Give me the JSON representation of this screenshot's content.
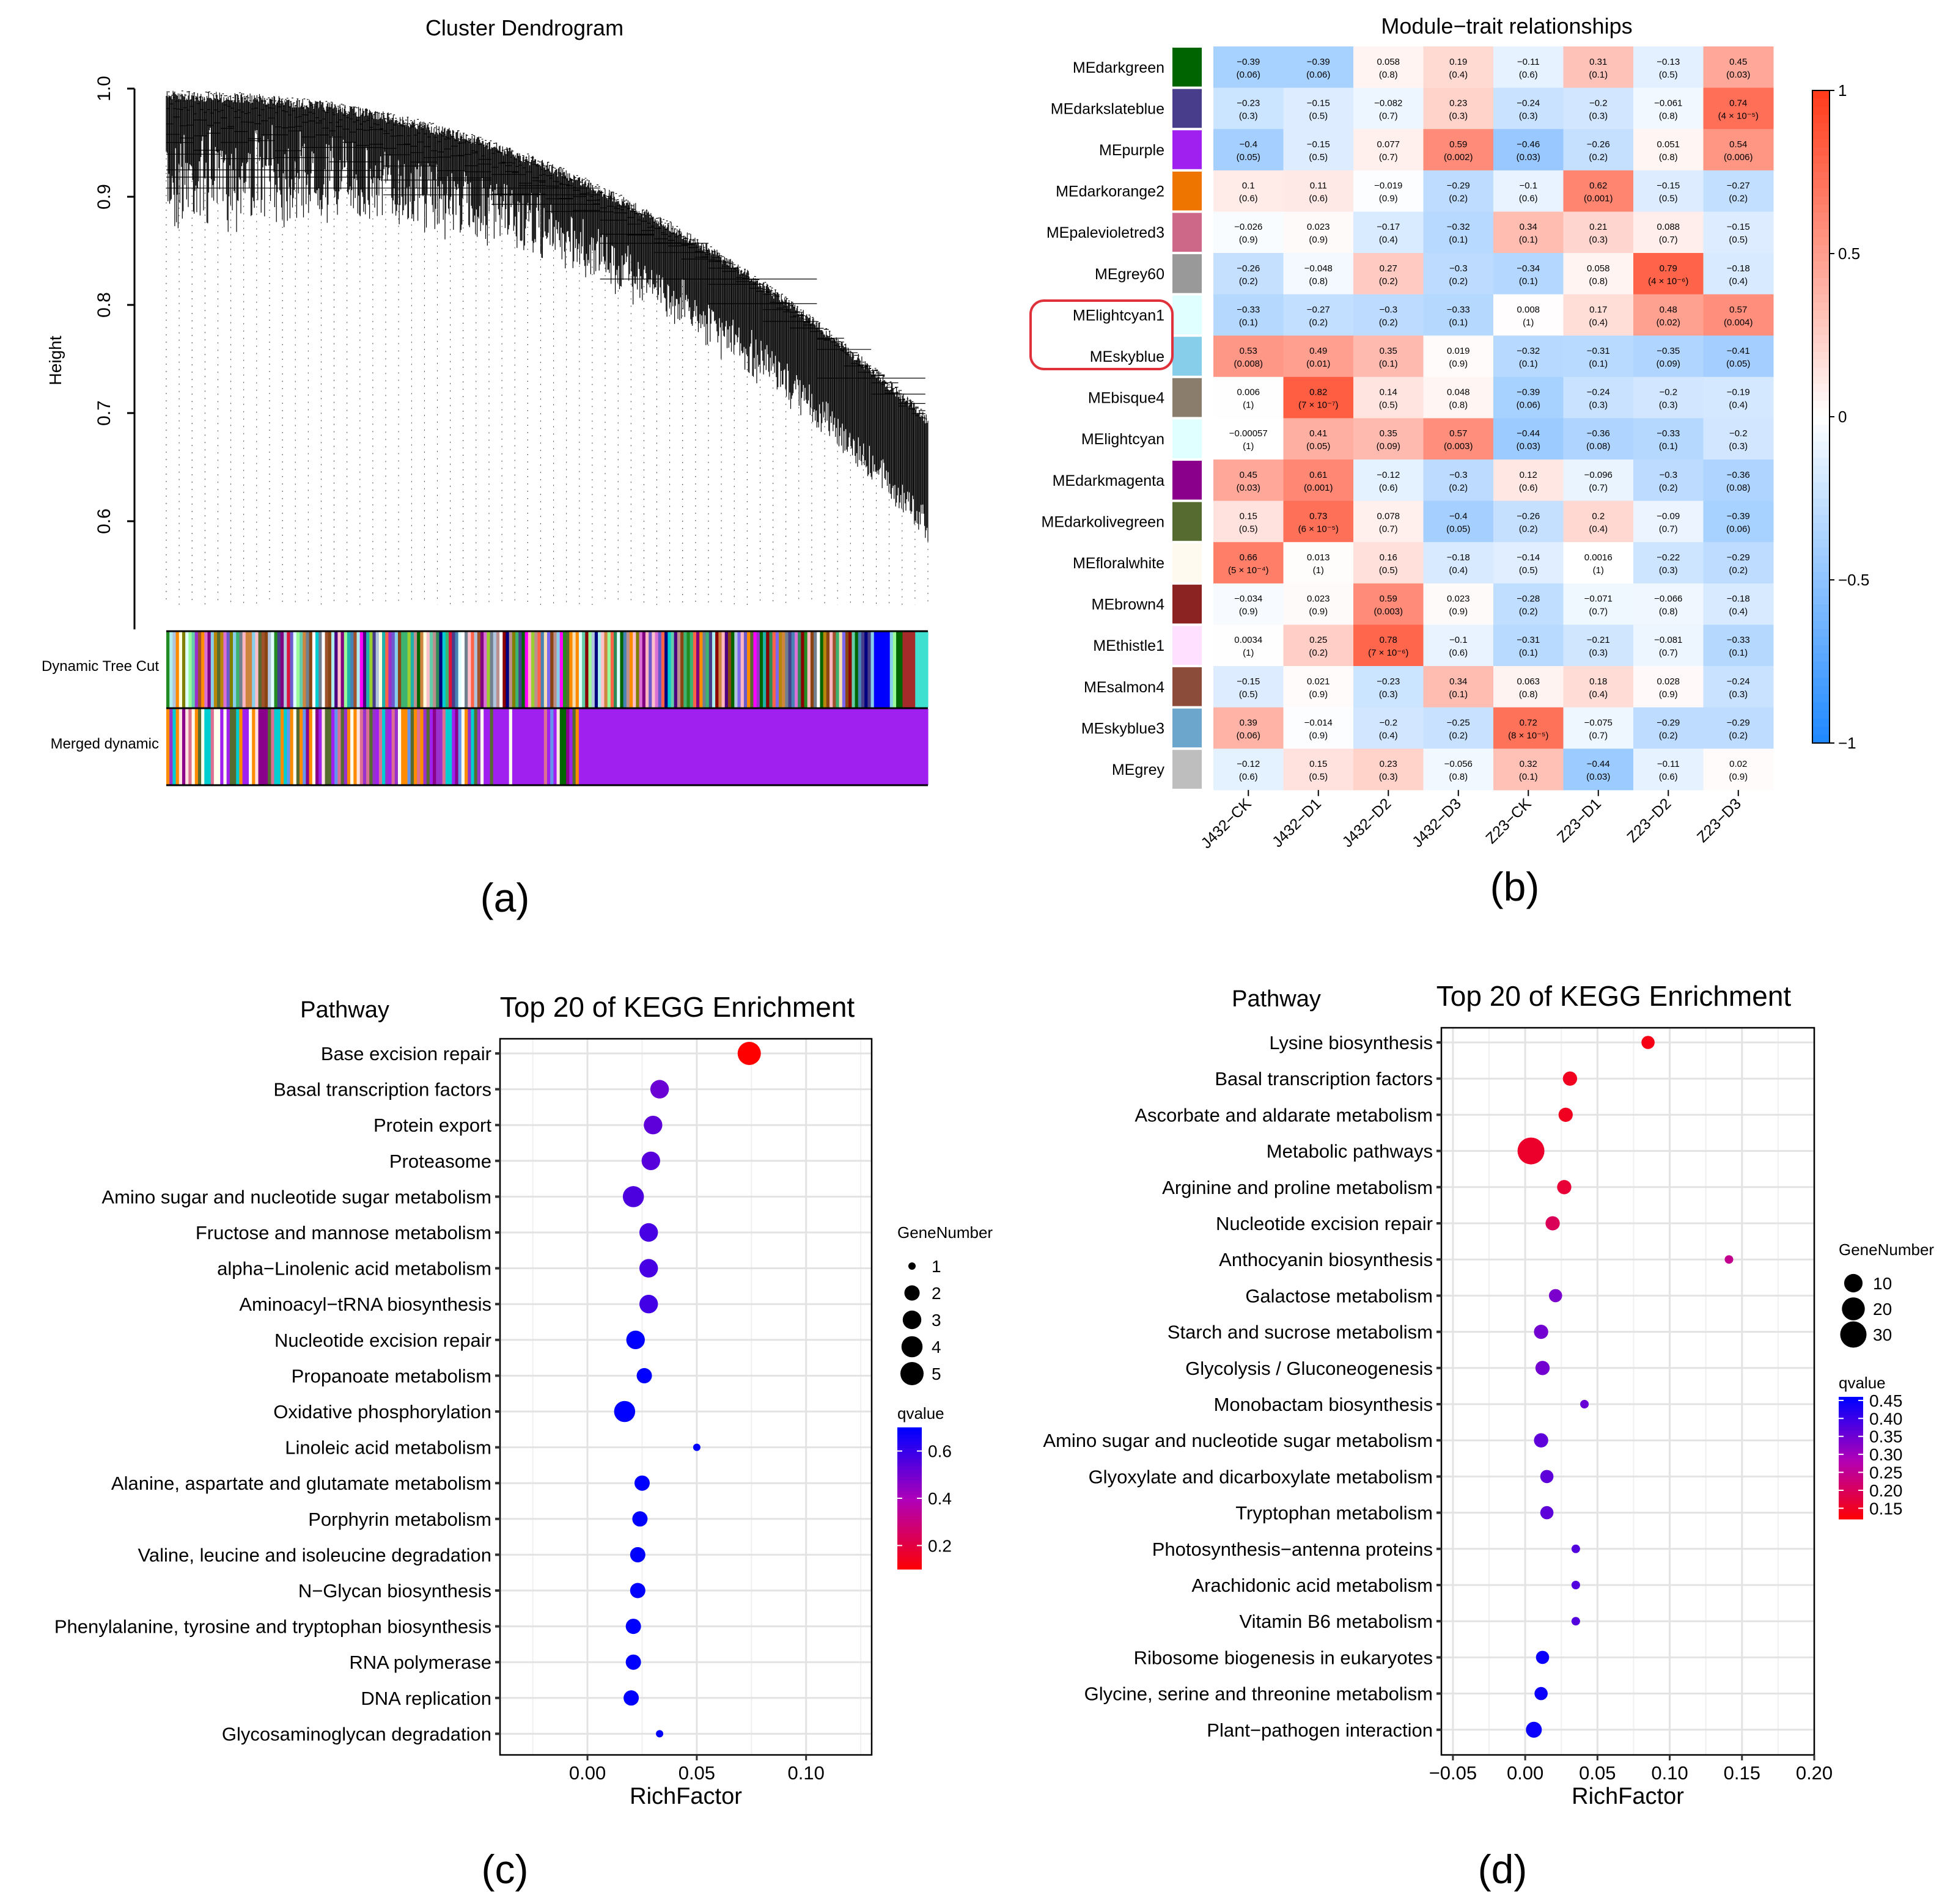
{
  "figure": {
    "panel_labels": [
      "(a)",
      "(b)",
      "(c)",
      "(d)"
    ],
    "colors": {
      "heat_neg": "#1E88FF",
      "heat_mid": "#FFFFFF",
      "heat_pos": "#FF3B1A",
      "outline": "#E0303A"
    }
  },
  "panel_a": {
    "title": "Cluster Dendrogram",
    "ylabel": "Height",
    "yticks": [
      "1.0",
      "0.9",
      "0.8",
      "0.7",
      "0.6"
    ],
    "ytick_values": [
      1.0,
      0.9,
      0.8,
      0.7,
      0.6
    ],
    "ylim": [
      0.5,
      1.0
    ],
    "row1_label": "Dynamic Tree Cut",
    "row2_label": "Merged dynamic",
    "dynamic_colors": [
      "#8B0000",
      "#20B2AA",
      "#9932CC",
      "#FFC0CB",
      "#3CB371",
      "#808000",
      "#FFB6C1",
      "#87CEEB",
      "#CD853F",
      "#483D8B",
      "#FFFFE0",
      "#FF00FF",
      "#000080",
      "#228B22",
      "#A0522D",
      "#E0FFFF",
      "#FF8C00",
      "#7B68EE",
      "#B0C4DE",
      "#2E8B57",
      "#FFFFFF",
      "#556B2F",
      "#DA70D6",
      "#006400",
      "#4682B4",
      "#BC8F8F",
      "#9ACD32",
      "#FF6347",
      "#00CED1",
      "#800080",
      "#F5DEB3",
      "#708090",
      "#DC143C",
      "#66CDAA",
      "#B8860B",
      "#6A5ACD",
      "#AFEEEE",
      "#8B4513",
      "#98FB98",
      "#4B0082"
    ],
    "merged_colors": [
      "#A020F0",
      "#8B008B",
      "#556B2F",
      "#FF8C00",
      "#FFFFF0",
      "#6495ED",
      "#00CED1",
      "#DB7093",
      "#FFE4E1",
      "#9932CC"
    ],
    "merged_main": "#A020F0"
  },
  "panel_b": {
    "title": "Module−trait relationships",
    "traits": [
      "J432−CK",
      "J432−D1",
      "J432−D2",
      "J432−D3",
      "Z23−CK",
      "Z23−D1",
      "Z23−D2",
      "Z23−D3"
    ],
    "modules": [
      {
        "name": "MEdarkgreen",
        "color": "#006400",
        "r": [
          -0.39,
          -0.39,
          0.058,
          0.19,
          -0.11,
          0.31,
          -0.13,
          0.45
        ],
        "c": [
          "−0.39",
          "−0.39",
          "0.058",
          "0.19",
          "−0.11",
          "0.31",
          "−0.13",
          "0.45"
        ],
        "p": [
          "(0.06)",
          "(0.06)",
          "(0.8)",
          "(0.4)",
          "(0.6)",
          "(0.1)",
          "(0.5)",
          "(0.03)"
        ]
      },
      {
        "name": "MEdarkslateblue",
        "color": "#483D8B",
        "r": [
          -0.23,
          -0.15,
          -0.082,
          0.23,
          -0.24,
          -0.2,
          -0.061,
          0.74
        ],
        "c": [
          "−0.23",
          "−0.15",
          "−0.082",
          "0.23",
          "−0.24",
          "−0.2",
          "−0.061",
          "0.74"
        ],
        "p": [
          "(0.3)",
          "(0.5)",
          "(0.7)",
          "(0.3)",
          "(0.3)",
          "(0.3)",
          "(0.8)",
          "(4 × 10⁻⁵)"
        ]
      },
      {
        "name": "MEpurple",
        "color": "#A020F0",
        "r": [
          -0.4,
          -0.15,
          0.077,
          0.59,
          -0.46,
          -0.26,
          0.051,
          0.54
        ],
        "c": [
          "−0.4",
          "−0.15",
          "0.077",
          "0.59",
          "−0.46",
          "−0.26",
          "0.051",
          "0.54"
        ],
        "p": [
          "(0.05)",
          "(0.5)",
          "(0.7)",
          "(0.002)",
          "(0.03)",
          "(0.2)",
          "(0.8)",
          "(0.006)"
        ]
      },
      {
        "name": "MEdarkorange2",
        "color": "#EE7600",
        "r": [
          0.1,
          0.11,
          -0.019,
          -0.29,
          -0.1,
          0.62,
          -0.15,
          -0.27
        ],
        "c": [
          "0.1",
          "0.11",
          "−0.019",
          "−0.29",
          "−0.1",
          "0.62",
          "−0.15",
          "−0.27"
        ],
        "p": [
          "(0.6)",
          "(0.6)",
          "(0.9)",
          "(0.2)",
          "(0.6)",
          "(0.001)",
          "(0.5)",
          "(0.2)"
        ]
      },
      {
        "name": "MEpalevioletred3",
        "color": "#CD6889",
        "r": [
          -0.026,
          0.023,
          -0.17,
          -0.32,
          0.34,
          0.21,
          0.088,
          -0.15
        ],
        "c": [
          "−0.026",
          "0.023",
          "−0.17",
          "−0.32",
          "0.34",
          "0.21",
          "0.088",
          "−0.15"
        ],
        "p": [
          "(0.9)",
          "(0.9)",
          "(0.4)",
          "(0.1)",
          "(0.1)",
          "(0.3)",
          "(0.7)",
          "(0.5)"
        ]
      },
      {
        "name": "MEgrey60",
        "color": "#999999",
        "r": [
          -0.26,
          -0.048,
          0.27,
          -0.3,
          -0.34,
          0.058,
          0.79,
          -0.18
        ],
        "c": [
          "−0.26",
          "−0.048",
          "0.27",
          "−0.3",
          "−0.34",
          "0.058",
          "0.79",
          "−0.18"
        ],
        "p": [
          "(0.2)",
          "(0.8)",
          "(0.2)",
          "(0.2)",
          "(0.1)",
          "(0.8)",
          "(4 × 10⁻⁶)",
          "(0.4)"
        ]
      },
      {
        "name": "MElightcyan1",
        "color": "#E0FFFF",
        "r": [
          -0.33,
          -0.27,
          -0.3,
          -0.33,
          0.008,
          0.17,
          0.48,
          0.57
        ],
        "c": [
          "−0.33",
          "−0.27",
          "−0.3",
          "−0.33",
          "0.008",
          "0.17",
          "0.48",
          "0.57"
        ],
        "p": [
          "(0.1)",
          "(0.2)",
          "(0.2)",
          "(0.1)",
          "(1)",
          "(0.4)",
          "(0.02)",
          "(0.004)"
        ]
      },
      {
        "name": "MEskyblue",
        "color": "#87CEEB",
        "r": [
          0.53,
          0.49,
          0.35,
          0.019,
          -0.32,
          -0.31,
          -0.35,
          -0.41
        ],
        "c": [
          "0.53",
          "0.49",
          "0.35",
          "0.019",
          "−0.32",
          "−0.31",
          "−0.35",
          "−0.41"
        ],
        "p": [
          "(0.008)",
          "(0.01)",
          "(0.1)",
          "(0.9)",
          "(0.1)",
          "(0.1)",
          "(0.09)",
          "(0.05)"
        ]
      },
      {
        "name": "MEbisque4",
        "color": "#8B7D6B",
        "r": [
          0.006,
          0.82,
          0.14,
          0.048,
          -0.39,
          -0.24,
          -0.2,
          -0.19
        ],
        "c": [
          "0.006",
          "0.82",
          "0.14",
          "0.048",
          "−0.39",
          "−0.24",
          "−0.2",
          "−0.19"
        ],
        "p": [
          "(1)",
          "(7 × 10⁻⁷)",
          "(0.5)",
          "(0.8)",
          "(0.06)",
          "(0.3)",
          "(0.3)",
          "(0.4)"
        ]
      },
      {
        "name": "MElightcyan",
        "color": "#E0FFFF",
        "r": [
          -0.00057,
          0.41,
          0.35,
          0.57,
          -0.44,
          -0.36,
          -0.33,
          -0.2
        ],
        "c": [
          "−0.00057",
          "0.41",
          "0.35",
          "0.57",
          "−0.44",
          "−0.36",
          "−0.33",
          "−0.2"
        ],
        "p": [
          "(1)",
          "(0.05)",
          "(0.09)",
          "(0.003)",
          "(0.03)",
          "(0.08)",
          "(0.1)",
          "(0.3)"
        ]
      },
      {
        "name": "MEdarkmagenta",
        "color": "#8B008B",
        "r": [
          0.45,
          0.61,
          -0.12,
          -0.3,
          0.12,
          -0.096,
          -0.3,
          -0.36
        ],
        "c": [
          "0.45",
          "0.61",
          "−0.12",
          "−0.3",
          "0.12",
          "−0.096",
          "−0.3",
          "−0.36"
        ],
        "p": [
          "(0.03)",
          "(0.001)",
          "(0.6)",
          "(0.2)",
          "(0.6)",
          "(0.7)",
          "(0.2)",
          "(0.08)"
        ]
      },
      {
        "name": "MEdarkolivegreen",
        "color": "#556B2F",
        "r": [
          0.15,
          0.73,
          0.078,
          -0.4,
          -0.26,
          0.2,
          -0.09,
          -0.39
        ],
        "c": [
          "0.15",
          "0.73",
          "0.078",
          "−0.4",
          "−0.26",
          "0.2",
          "−0.09",
          "−0.39"
        ],
        "p": [
          "(0.5)",
          "(6 × 10⁻⁵)",
          "(0.7)",
          "(0.05)",
          "(0.2)",
          "(0.4)",
          "(0.7)",
          "(0.06)"
        ]
      },
      {
        "name": "MEfloralwhite",
        "color": "#FFFAF0",
        "r": [
          0.66,
          0.013,
          0.16,
          -0.18,
          -0.14,
          0.0016,
          -0.22,
          -0.29
        ],
        "c": [
          "0.66",
          "0.013",
          "0.16",
          "−0.18",
          "−0.14",
          "0.0016",
          "−0.22",
          "−0.29"
        ],
        "p": [
          "(5 × 10⁻⁴)",
          "(1)",
          "(0.5)",
          "(0.4)",
          "(0.5)",
          "(1)",
          "(0.3)",
          "(0.2)"
        ]
      },
      {
        "name": "MEbrown4",
        "color": "#8B2323",
        "r": [
          -0.034,
          0.023,
          0.59,
          0.023,
          -0.28,
          -0.071,
          -0.066,
          -0.18
        ],
        "c": [
          "−0.034",
          "0.023",
          "0.59",
          "0.023",
          "−0.28",
          "−0.071",
          "−0.066",
          "−0.18"
        ],
        "p": [
          "(0.9)",
          "(0.9)",
          "(0.003)",
          "(0.9)",
          "(0.2)",
          "(0.7)",
          "(0.8)",
          "(0.4)"
        ]
      },
      {
        "name": "MEthistle1",
        "color": "#FFE1FF",
        "r": [
          0.0034,
          0.25,
          0.78,
          -0.1,
          -0.31,
          -0.21,
          -0.081,
          -0.33
        ],
        "c": [
          "0.0034",
          "0.25",
          "0.78",
          "−0.1",
          "−0.31",
          "−0.21",
          "−0.081",
          "−0.33"
        ],
        "p": [
          "(1)",
          "(0.2)",
          "(7 × 10⁻⁶)",
          "(0.6)",
          "(0.1)",
          "(0.3)",
          "(0.7)",
          "(0.1)"
        ]
      },
      {
        "name": "MEsalmon4",
        "color": "#8B4C39",
        "r": [
          -0.15,
          0.021,
          -0.23,
          0.34,
          0.063,
          0.18,
          0.028,
          -0.24
        ],
        "c": [
          "−0.15",
          "0.021",
          "−0.23",
          "0.34",
          "0.063",
          "0.18",
          "0.028",
          "−0.24"
        ],
        "p": [
          "(0.5)",
          "(0.9)",
          "(0.3)",
          "(0.1)",
          "(0.8)",
          "(0.4)",
          "(0.9)",
          "(0.3)"
        ]
      },
      {
        "name": "MEskyblue3",
        "color": "#6CA6CD",
        "r": [
          0.39,
          -0.014,
          -0.2,
          -0.25,
          0.72,
          -0.075,
          -0.29,
          -0.29
        ],
        "c": [
          "0.39",
          "−0.014",
          "−0.2",
          "−0.25",
          "0.72",
          "−0.075",
          "−0.29",
          "−0.29"
        ],
        "p": [
          "(0.06)",
          "(0.9)",
          "(0.4)",
          "(0.2)",
          "(8 × 10⁻⁵)",
          "(0.7)",
          "(0.2)",
          "(0.2)"
        ]
      },
      {
        "name": "MEgrey",
        "color": "#BEBEBE",
        "r": [
          -0.12,
          0.15,
          0.23,
          -0.056,
          0.32,
          -0.44,
          -0.11,
          0.02
        ],
        "c": [
          "−0.12",
          "0.15",
          "0.23",
          "−0.056",
          "0.32",
          "−0.44",
          "−0.11",
          "0.02"
        ],
        "p": [
          "(0.6)",
          "(0.5)",
          "(0.3)",
          "(0.8)",
          "(0.1)",
          "(0.03)",
          "(0.6)",
          "(0.9)"
        ]
      }
    ],
    "legend_ticks": [
      "1",
      "0.5",
      "0",
      "−0.5",
      "−1"
    ],
    "legend_values": [
      1,
      0.5,
      0,
      -0.5,
      -1
    ],
    "highlighted": [
      "MElightcyan1",
      "MEskyblue"
    ]
  },
  "chart_data": [
    {
      "type": "scatter",
      "title": "Top 20 of KEGG Enrichment",
      "ylabel": "Pathway",
      "xlabel": "RichFactor",
      "xlim": [
        -0.04,
        0.13
      ],
      "xticks": [
        0.0,
        0.05,
        0.1
      ],
      "xtick_labels": [
        "0.00",
        "0.05",
        "0.10"
      ],
      "size_legend_title": "GeneNumber",
      "size_legend": [
        1,
        2,
        3,
        4,
        5
      ],
      "color_legend_title": "qvalue",
      "color_legend": [
        0.6,
        0.4,
        0.2
      ],
      "color_legend_labels": [
        "0.6",
        "0.4",
        "0.2"
      ],
      "qrange": [
        0.1,
        0.7
      ],
      "pathways": [
        "Base excision repair",
        "Basal transcription factors",
        "Protein export",
        "Proteasome",
        "Amino sugar and nucleotide sugar metabolism",
        "Fructose and mannose metabolism",
        "alpha−Linolenic acid metabolism",
        "Aminoacyl−tRNA biosynthesis",
        "Nucleotide excision repair",
        "Propanoate metabolism",
        "Oxidative phosphorylation",
        "Linoleic acid metabolism",
        "Alanine, aspartate and glutamate metabolism",
        "Porphyrin metabolism",
        "Valine, leucine and isoleucine degradation",
        "N−Glycan biosynthesis",
        "Phenylalanine, tyrosine and tryptophan biosynthesis",
        "RNA polymerase",
        "DNA replication",
        "Glycosaminoglycan degradation"
      ],
      "richfactor": [
        0.074,
        0.033,
        0.03,
        0.029,
        0.021,
        0.028,
        0.028,
        0.028,
        0.022,
        0.026,
        0.017,
        0.05,
        0.025,
        0.024,
        0.023,
        0.023,
        0.021,
        0.021,
        0.02,
        0.033
      ],
      "genenumber": [
        5,
        3,
        3,
        3,
        4,
        3,
        3,
        3,
        3,
        2,
        4,
        1,
        2,
        2,
        2,
        2,
        2,
        2,
        2,
        1
      ],
      "qvalue": [
        0.05,
        0.52,
        0.54,
        0.55,
        0.57,
        0.58,
        0.58,
        0.59,
        0.7,
        0.7,
        0.7,
        0.7,
        0.7,
        0.7,
        0.7,
        0.7,
        0.7,
        0.7,
        0.7,
        0.7
      ]
    },
    {
      "type": "scatter",
      "title": "Top 20 of KEGG Enrichment",
      "ylabel": "Pathway",
      "xlabel": "RichFactor",
      "xlim": [
        -0.058,
        0.2
      ],
      "xticks": [
        -0.05,
        0.0,
        0.05,
        0.1,
        0.15,
        0.2
      ],
      "xtick_labels": [
        "−0.05",
        "0.00",
        "0.05",
        "0.10",
        "0.15",
        "0.20"
      ],
      "size_legend_title": "GeneNumber",
      "size_legend": [
        10,
        20,
        30
      ],
      "color_legend_title": "qvalue",
      "color_legend": [
        0.45,
        0.4,
        0.35,
        0.3,
        0.25,
        0.2,
        0.15
      ],
      "color_legend_labels": [
        "0.45",
        "0.40",
        "0.35",
        "0.30",
        "0.25",
        "0.20",
        "0.15"
      ],
      "qrange": [
        0.12,
        0.46
      ],
      "pathways": [
        "Lysine biosynthesis",
        "Basal transcription factors",
        "Ascorbate and aldarate metabolism",
        "Metabolic pathways",
        "Arginine and proline metabolism",
        "Nucleotide excision repair",
        "Anthocyanin biosynthesis",
        "Galactose metabolism",
        "Starch and sucrose metabolism",
        "Glycolysis / Gluconeogenesis",
        "Monobactam biosynthesis",
        "Amino sugar and nucleotide sugar metabolism",
        "Glyoxylate and dicarboxylate metabolism",
        "Tryptophan metabolism",
        "Photosynthesis−antenna proteins",
        "Arachidonic acid metabolism",
        "Vitamin B6 metabolism",
        "Ribosome biogenesis in eukaryotes",
        "Glycine, serine and threonine metabolism",
        "Plant−pathogen interaction"
      ],
      "richfactor": [
        0.085,
        0.031,
        0.028,
        0.004,
        0.027,
        0.019,
        0.141,
        0.021,
        0.011,
        0.012,
        0.041,
        0.011,
        0.015,
        0.015,
        0.035,
        0.035,
        0.035,
        0.012,
        0.011,
        0.006
      ],
      "genenumber": [
        3,
        4,
        4,
        32,
        4,
        4,
        1,
        3,
        4,
        4,
        1,
        4,
        3,
        3,
        1,
        1,
        1,
        3,
        3,
        6
      ],
      "qvalue": [
        0.14,
        0.15,
        0.15,
        0.16,
        0.17,
        0.2,
        0.25,
        0.34,
        0.35,
        0.35,
        0.36,
        0.37,
        0.37,
        0.37,
        0.38,
        0.38,
        0.38,
        0.45,
        0.45,
        0.45
      ]
    }
  ]
}
